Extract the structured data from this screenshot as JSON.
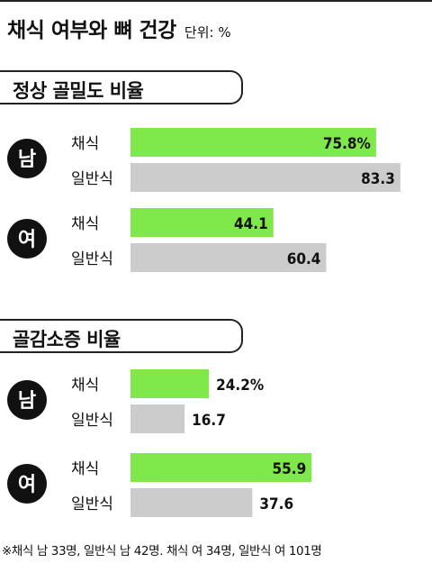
{
  "title": "채식 여부와 뼈 건강",
  "unit": "단위: %",
  "footnote": "※채식 남 33명, 일반식 남 42명. 채식 여 34명, 일반식 여 101명",
  "colors": {
    "vegetarian": "#7fe84a",
    "regular": "#cccccc",
    "badge": "#111111",
    "text": "#111111"
  },
  "chart_data": [
    {
      "type": "bar",
      "title": "정상 골밀도 비율",
      "groups": [
        {
          "name": "남",
          "bars": [
            {
              "label": "채식",
              "value": 75.8,
              "text": "75.8%"
            },
            {
              "label": "일반식",
              "value": 83.3,
              "text": "83.3"
            }
          ]
        },
        {
          "name": "여",
          "bars": [
            {
              "label": "채식",
              "value": 44.1,
              "text": "44.1"
            },
            {
              "label": "일반식",
              "value": 60.4,
              "text": "60.4"
            }
          ]
        }
      ]
    },
    {
      "type": "bar",
      "title": "골감소증 비율",
      "groups": [
        {
          "name": "남",
          "bars": [
            {
              "label": "채식",
              "value": 24.2,
              "text": "24.2%"
            },
            {
              "label": "일반식",
              "value": 16.7,
              "text": "16.7"
            }
          ]
        },
        {
          "name": "여",
          "bars": [
            {
              "label": "채식",
              "value": 55.9,
              "text": "55.9"
            },
            {
              "label": "일반식",
              "value": 37.6,
              "text": "37.6"
            }
          ]
        }
      ]
    }
  ]
}
